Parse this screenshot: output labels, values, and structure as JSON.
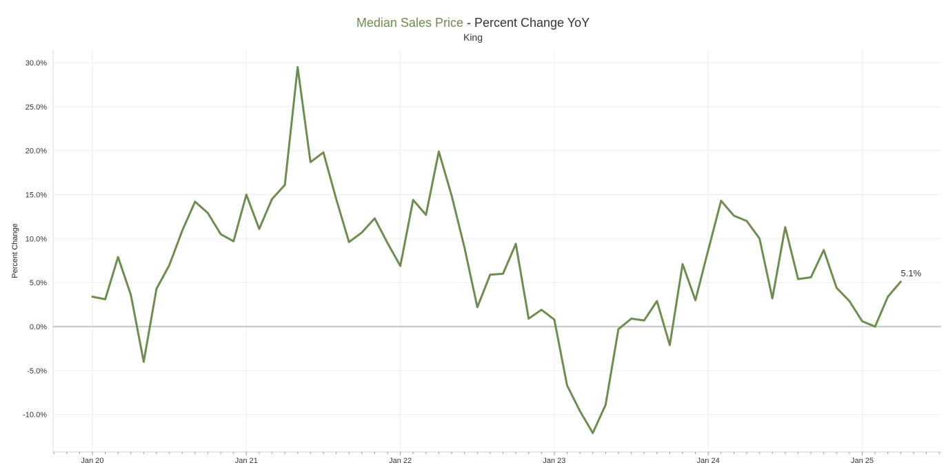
{
  "chart_data": {
    "type": "line",
    "title_main": "Median Sales Price",
    "title_rest": " - Percent Change YoY",
    "subtitle": "King",
    "ylabel": "Percent Change",
    "xlabel": "",
    "ylim": [
      -14.2,
      32
    ],
    "yticks": [
      "30.0%",
      "25.0%",
      "20.0%",
      "15.0%",
      "10.0%",
      "5.0%",
      "0.0%",
      "-5.0%",
      "-10.0%"
    ],
    "ytick_values": [
      30,
      25,
      20,
      15,
      10,
      5,
      0,
      -5,
      -10
    ],
    "xticks": [
      "Jan 20",
      "Jan 21",
      "Jan 22",
      "Jan 23",
      "Jan 24",
      "Jan 25"
    ],
    "x_start": "Jan 20",
    "grid": true,
    "colors": {
      "line": "#6b8e4e",
      "zero_line": "#cccccc",
      "grid": "#eeeeee"
    },
    "series": [
      {
        "values": [
          3.4,
          3.1,
          7.9,
          3.6,
          -4.0,
          4.3,
          7.0,
          10.9,
          14.2,
          12.9,
          10.5,
          9.7,
          15.0,
          11.1,
          14.5,
          16.1,
          29.5,
          18.7,
          19.8,
          14.5,
          9.6,
          10.7,
          12.3,
          9.5,
          6.9,
          14.4,
          12.7,
          19.9,
          14.9,
          9.0,
          2.2,
          5.9,
          6.0,
          9.4,
          0.9,
          1.9,
          0.8,
          -6.7,
          -9.6,
          -12.1,
          -8.9,
          -0.3,
          0.9,
          0.7,
          2.9,
          -2.1,
          7.1,
          3.0,
          8.7,
          14.3,
          12.6,
          12.0,
          10.0,
          3.2,
          11.3,
          5.4,
          5.6,
          8.7,
          4.4,
          2.9,
          0.6,
          0.0,
          3.4,
          5.1
        ]
      }
    ],
    "last_value_label": "5.1%"
  }
}
